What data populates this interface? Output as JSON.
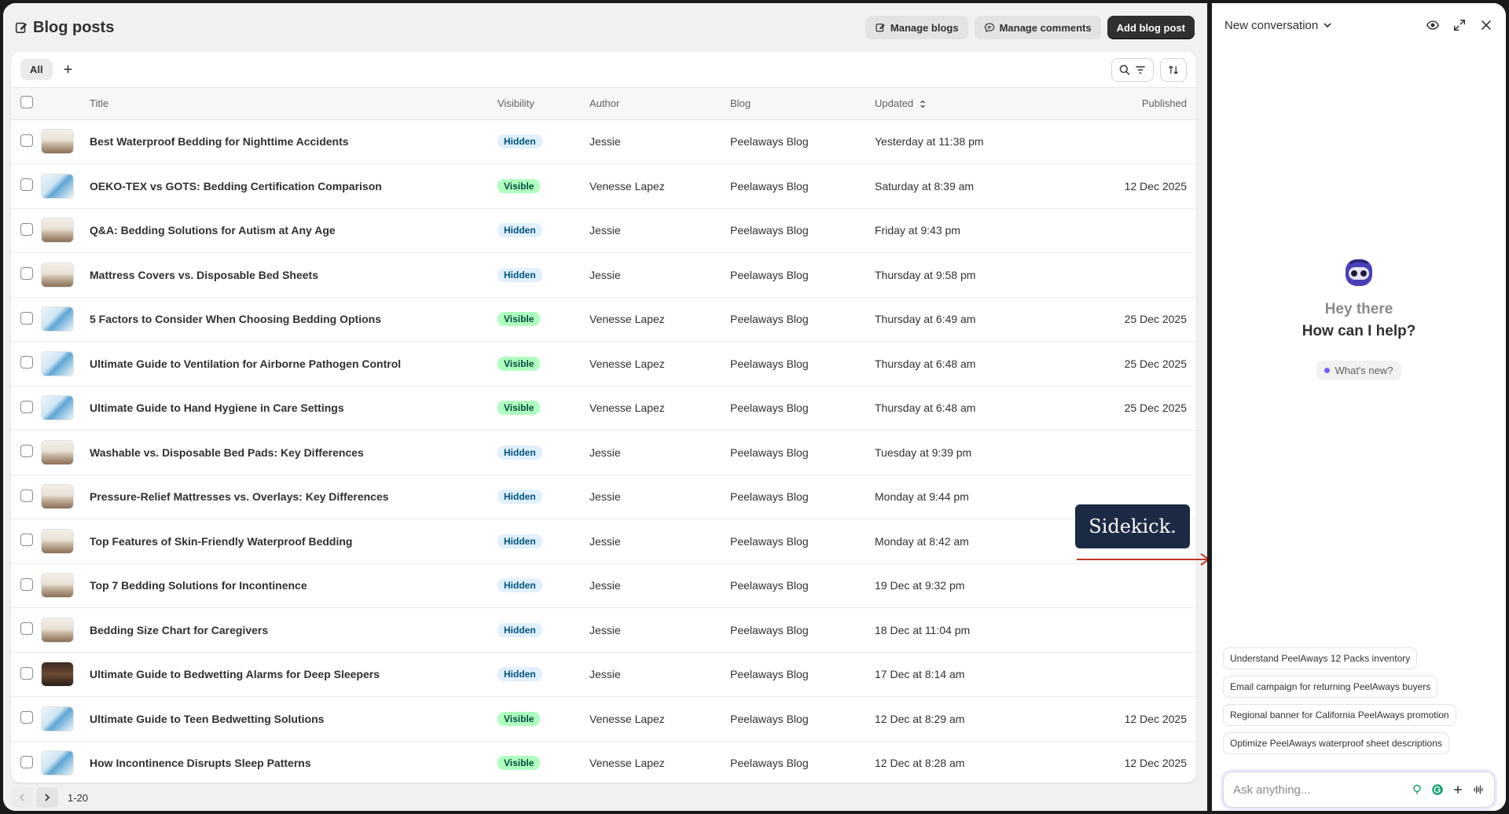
{
  "page": {
    "title": "Blog posts",
    "manage_blogs": "Manage blogs",
    "manage_comments": "Manage comments",
    "add_post": "Add blog post",
    "tab_all": "All",
    "tab_add": "+"
  },
  "columns": {
    "title": "Title",
    "visibility": "Visibility",
    "author": "Author",
    "blog": "Blog",
    "updated": "Updated",
    "published": "Published"
  },
  "rows": [
    {
      "thumb": "bed",
      "title": "Best Waterproof Bedding for Nighttime Accidents",
      "visibility": "Hidden",
      "author": "Jessie",
      "blog": "Peelaways Blog",
      "updated": "Yesterday at 11:38 pm",
      "published": ""
    },
    {
      "thumb": "cert",
      "title": "OEKO-TEX vs GOTS: Bedding Certification Comparison",
      "visibility": "Visible",
      "author": "Venesse Lapez",
      "blog": "Peelaways Blog",
      "updated": "Saturday at 8:39 am",
      "published": "12 Dec 2025"
    },
    {
      "thumb": "bed",
      "title": "Q&A: Bedding Solutions for Autism at Any Age",
      "visibility": "Hidden",
      "author": "Jessie",
      "blog": "Peelaways Blog",
      "updated": "Friday at 9:43 pm",
      "published": ""
    },
    {
      "thumb": "bed",
      "title": "Mattress Covers vs. Disposable Bed Sheets",
      "visibility": "Hidden",
      "author": "Jessie",
      "blog": "Peelaways Blog",
      "updated": "Thursday at 9:58 pm",
      "published": ""
    },
    {
      "thumb": "cert",
      "title": "5 Factors to Consider When Choosing Bedding Options",
      "visibility": "Visible",
      "author": "Venesse Lapez",
      "blog": "Peelaways Blog",
      "updated": "Thursday at 6:49 am",
      "published": "25 Dec 2025"
    },
    {
      "thumb": "cert",
      "title": "Ultimate Guide to Ventilation for Airborne Pathogen Control",
      "visibility": "Visible",
      "author": "Venesse Lapez",
      "blog": "Peelaways Blog",
      "updated": "Thursday at 6:48 am",
      "published": "25 Dec 2025"
    },
    {
      "thumb": "cert",
      "title": "Ultimate Guide to Hand Hygiene in Care Settings",
      "visibility": "Visible",
      "author": "Venesse Lapez",
      "blog": "Peelaways Blog",
      "updated": "Thursday at 6:48 am",
      "published": "25 Dec 2025"
    },
    {
      "thumb": "bed",
      "title": "Washable vs. Disposable Bed Pads: Key Differences",
      "visibility": "Hidden",
      "author": "Jessie",
      "blog": "Peelaways Blog",
      "updated": "Tuesday at 9:39 pm",
      "published": ""
    },
    {
      "thumb": "bed",
      "title": "Pressure-Relief Mattresses vs. Overlays: Key Differences",
      "visibility": "Hidden",
      "author": "Jessie",
      "blog": "Peelaways Blog",
      "updated": "Monday at 9:44 pm",
      "published": ""
    },
    {
      "thumb": "bed",
      "title": "Top Features of Skin-Friendly Waterproof Bedding",
      "visibility": "Hidden",
      "author": "Jessie",
      "blog": "Peelaways Blog",
      "updated": "Monday at 8:42 am",
      "published": ""
    },
    {
      "thumb": "bed",
      "title": "Top 7 Bedding Solutions for Incontinence",
      "visibility": "Hidden",
      "author": "Jessie",
      "blog": "Peelaways Blog",
      "updated": "19 Dec at 9:32 pm",
      "published": ""
    },
    {
      "thumb": "bed",
      "title": "Bedding Size Chart for Caregivers",
      "visibility": "Hidden",
      "author": "Jessie",
      "blog": "Peelaways Blog",
      "updated": "18 Dec at 11:04 pm",
      "published": ""
    },
    {
      "thumb": "dark",
      "title": "Ultimate Guide to Bedwetting Alarms for Deep Sleepers",
      "visibility": "Hidden",
      "author": "Jessie",
      "blog": "Peelaways Blog",
      "updated": "17 Dec at 8:14 am",
      "published": ""
    },
    {
      "thumb": "cert",
      "title": "Ultimate Guide to Teen Bedwetting Solutions",
      "visibility": "Visible",
      "author": "Venesse Lapez",
      "blog": "Peelaways Blog",
      "updated": "12 Dec at 8:29 am",
      "published": "12 Dec 2025"
    },
    {
      "thumb": "cert",
      "title": "How Incontinence Disrupts Sleep Patterns",
      "visibility": "Visible",
      "author": "Venesse Lapez",
      "blog": "Peelaways Blog",
      "updated": "12 Dec at 8:28 am",
      "published": "12 Dec 2025"
    }
  ],
  "pagination": {
    "label": "1-20"
  },
  "overlay": {
    "sidekick_label": "Sidekick.",
    "arrow_color": "#c0392b"
  },
  "sidekick": {
    "conversation_title": "New conversation",
    "greeting_1": "Hey there",
    "greeting_2": "How can I help?",
    "whats_new": "What's new?",
    "suggestions": [
      "Understand PeelAways 12 Packs inventory",
      "Email campaign for returning PeelAways buyers",
      "Regional banner for California PeelAways promotion",
      "Optimize PeelAways waterproof sheet descriptions"
    ],
    "input_placeholder": "Ask anything..."
  },
  "colors": {
    "primary_button": "#303030",
    "badge_hidden_bg": "#e0f0ff",
    "badge_visible_bg": "#affebf",
    "tooltip_bg": "#1c2a44"
  }
}
